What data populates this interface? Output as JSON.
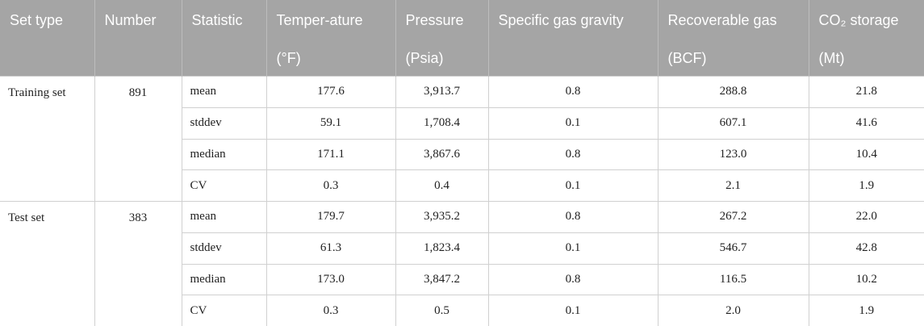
{
  "table": {
    "columns": [
      {
        "name": "Set type"
      },
      {
        "name": "Number"
      },
      {
        "name": "Statistic"
      },
      {
        "name": "Temper-ature",
        "unit": "(°F)"
      },
      {
        "name": "Pressure",
        "unit": "(Psia)"
      },
      {
        "name": "Specific gas gravity"
      },
      {
        "name": "Recoverable gas",
        "unit": "(BCF)"
      },
      {
        "name": "CO₂ storage",
        "unit": "(Mt)"
      }
    ],
    "groups": [
      {
        "set_type": "Training set",
        "number": "891",
        "rows": [
          [
            "mean",
            "177.6",
            "3,913.7",
            "0.8",
            "288.8",
            "21.8"
          ],
          [
            "stddev",
            "59.1",
            "1,708.4",
            "0.1",
            "607.1",
            "41.6"
          ],
          [
            "median",
            "171.1",
            "3,867.6",
            "0.8",
            "123.0",
            "10.4"
          ],
          [
            "CV",
            "0.3",
            "0.4",
            "0.1",
            "2.1",
            "1.9"
          ]
        ]
      },
      {
        "set_type": "Test set",
        "number": "383",
        "rows": [
          [
            "mean",
            "179.7",
            "3,935.2",
            "0.8",
            "267.2",
            "22.0"
          ],
          [
            "stddev",
            "61.3",
            "1,823.4",
            "0.1",
            "546.7",
            "42.8"
          ],
          [
            "median",
            "173.0",
            "3,847.2",
            "0.8",
            "116.5",
            "10.2"
          ],
          [
            "CV",
            "0.3",
            "0.5",
            "0.1",
            "2.0",
            "1.9"
          ]
        ]
      }
    ]
  }
}
